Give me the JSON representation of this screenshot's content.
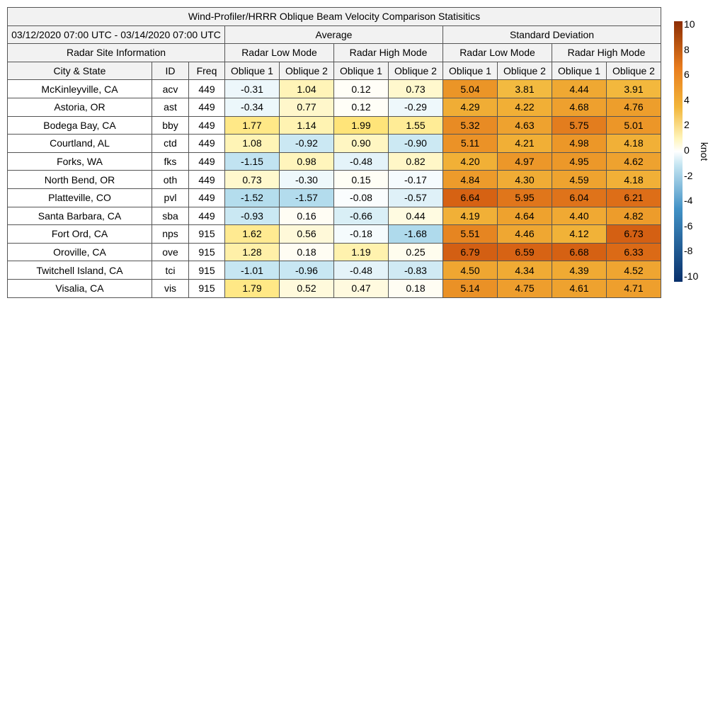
{
  "title": "Wind-Profiler/HRRR Oblique Beam Velocity Comparison Statisitics",
  "period": "03/12/2020 07:00 UTC - 03/14/2020 07:00 UTC",
  "groups": {
    "average": "Average",
    "std": "Standard Deviation"
  },
  "site_info_label": "Radar Site Information",
  "modes": {
    "low": "Radar Low Mode",
    "high": "Radar High Mode"
  },
  "columns": {
    "city": "City & State",
    "id": "ID",
    "freq": "Freq",
    "oblique1": "Oblique 1",
    "oblique2": "Oblique 2"
  },
  "colorbar": {
    "unit": "knot",
    "ticks": [
      "10",
      "8",
      "6",
      "4",
      "2",
      "0",
      "-2",
      "-4",
      "-6",
      "-8",
      "-10"
    ],
    "range": [
      -10,
      10
    ],
    "colormap": "diverging blue-white-orange",
    "colors": {
      "neg_max": "#08306b",
      "neg_mid": "#4292c6",
      "neg_low": "#c6e6f2",
      "zero": "#ffffff",
      "pos_low": "#fff5bb",
      "pos_mid": "#f2b63a",
      "pos_high": "#e97d1e",
      "pos_max": "#8c2d04"
    }
  },
  "chart_data": {
    "type": "table",
    "title": "Wind-Profiler/HRRR Oblique Beam Velocity Comparison Statisitics",
    "unit": "knot",
    "columns": [
      "City & State",
      "ID",
      "Freq",
      "Average Radar Low Mode Oblique 1",
      "Average Radar Low Mode Oblique 2",
      "Average Radar High Mode Oblique 1",
      "Average Radar High Mode Oblique 2",
      "Standard Deviation Radar Low Mode Oblique 1",
      "Standard Deviation Radar Low Mode Oblique 2",
      "Standard Deviation Radar High Mode Oblique 1",
      "Standard Deviation Radar High Mode Oblique 2"
    ],
    "rows": [
      {
        "city": "McKinleyville, CA",
        "id": "acv",
        "freq": "449",
        "avg": [
          "-0.31",
          "1.04",
          "0.12",
          "0.73"
        ],
        "std": [
          "5.04",
          "3.81",
          "4.44",
          "3.91"
        ]
      },
      {
        "city": "Astoria, OR",
        "id": "ast",
        "freq": "449",
        "avg": [
          "-0.34",
          "0.77",
          "0.12",
          "-0.29"
        ],
        "std": [
          "4.29",
          "4.22",
          "4.68",
          "4.76"
        ]
      },
      {
        "city": "Bodega Bay, CA",
        "id": "bby",
        "freq": "449",
        "avg": [
          "1.77",
          "1.14",
          "1.99",
          "1.55"
        ],
        "std": [
          "5.32",
          "4.63",
          "5.75",
          "5.01"
        ]
      },
      {
        "city": "Courtland, AL",
        "id": "ctd",
        "freq": "449",
        "avg": [
          "1.08",
          "-0.92",
          "0.90",
          "-0.90"
        ],
        "std": [
          "5.11",
          "4.21",
          "4.98",
          "4.18"
        ]
      },
      {
        "city": "Forks, WA",
        "id": "fks",
        "freq": "449",
        "avg": [
          "-1.15",
          "0.98",
          "-0.48",
          "0.82"
        ],
        "std": [
          "4.20",
          "4.97",
          "4.95",
          "4.62"
        ]
      },
      {
        "city": "North Bend, OR",
        "id": "oth",
        "freq": "449",
        "avg": [
          "0.73",
          "-0.30",
          "0.15",
          "-0.17"
        ],
        "std": [
          "4.84",
          "4.30",
          "4.59",
          "4.18"
        ]
      },
      {
        "city": "Platteville, CO",
        "id": "pvl",
        "freq": "449",
        "avg": [
          "-1.52",
          "-1.57",
          "-0.08",
          "-0.57"
        ],
        "std": [
          "6.64",
          "5.95",
          "6.04",
          "6.21"
        ]
      },
      {
        "city": "Santa Barbara, CA",
        "id": "sba",
        "freq": "449",
        "avg": [
          "-0.93",
          "0.16",
          "-0.66",
          "0.44"
        ],
        "std": [
          "4.19",
          "4.64",
          "4.40",
          "4.82"
        ]
      },
      {
        "city": "Fort Ord, CA",
        "id": "nps",
        "freq": "915",
        "avg": [
          "1.62",
          "0.56",
          "-0.18",
          "-1.68"
        ],
        "std": [
          "5.51",
          "4.46",
          "4.12",
          "6.73"
        ]
      },
      {
        "city": "Oroville, CA",
        "id": "ove",
        "freq": "915",
        "avg": [
          "1.28",
          "0.18",
          "1.19",
          "0.25"
        ],
        "std": [
          "6.79",
          "6.59",
          "6.68",
          "6.33"
        ]
      },
      {
        "city": "Twitchell Island, CA",
        "id": "tci",
        "freq": "915",
        "avg": [
          "-1.01",
          "-0.96",
          "-0.48",
          "-0.83"
        ],
        "std": [
          "4.50",
          "4.34",
          "4.39",
          "4.52"
        ]
      },
      {
        "city": "Visalia, CA",
        "id": "vis",
        "freq": "915",
        "avg": [
          "1.79",
          "0.52",
          "0.47",
          "0.18"
        ],
        "std": [
          "5.14",
          "4.75",
          "4.61",
          "4.71"
        ]
      }
    ]
  }
}
